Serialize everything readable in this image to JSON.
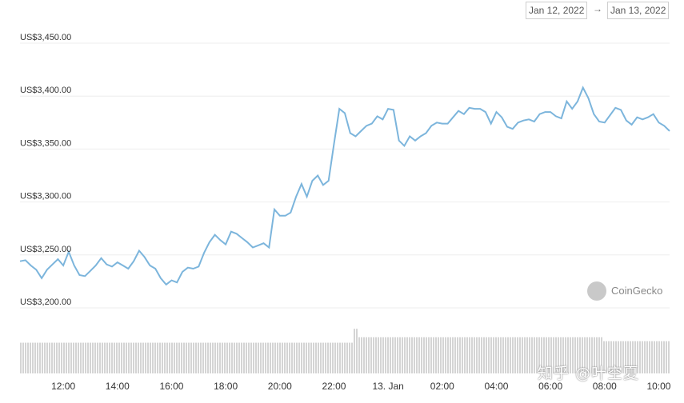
{
  "date_range": {
    "start": "Jan 12, 2022",
    "arrow": "→",
    "end": "Jan 13, 2022"
  },
  "brand": {
    "name": "CoinGecko"
  },
  "watermark": {
    "text": "知乎 @叶空夏"
  },
  "colors": {
    "line": "#7cb5dc",
    "volume": "#d4d4d4",
    "grid": "#eeeeee"
  },
  "chart_data": {
    "type": "line",
    "grid": true,
    "ylim": [
      3200,
      3450
    ],
    "y_ticks": [
      3200,
      3250,
      3300,
      3350,
      3400,
      3450
    ],
    "y_tick_labels": [
      "US$3,200.00",
      "US$3,250.00",
      "US$3,300.00",
      "US$3,350.00",
      "US$3,400.00",
      "US$3,450.00"
    ],
    "x_ticks": [
      12,
      14,
      16,
      18,
      20,
      22,
      24,
      26,
      28,
      30,
      32,
      34
    ],
    "x_tick_labels": [
      "12:00",
      "14:00",
      "16:00",
      "18:00",
      "20:00",
      "22:00",
      "13. Jan",
      "02:00",
      "04:00",
      "06:00",
      "08:00",
      "10:00"
    ],
    "xlim": [
      10.4,
      34.4
    ],
    "series": [
      {
        "values": [
          [
            10.4,
            3244
          ],
          [
            10.6,
            3245
          ],
          [
            10.8,
            3240
          ],
          [
            11.0,
            3236
          ],
          [
            11.2,
            3228
          ],
          [
            11.4,
            3236
          ],
          [
            11.6,
            3241
          ],
          [
            11.8,
            3246
          ],
          [
            12.0,
            3240
          ],
          [
            12.2,
            3253
          ],
          [
            12.4,
            3240
          ],
          [
            12.6,
            3231
          ],
          [
            12.8,
            3230
          ],
          [
            13.0,
            3235
          ],
          [
            13.2,
            3240
          ],
          [
            13.4,
            3247
          ],
          [
            13.6,
            3241
          ],
          [
            13.8,
            3239
          ],
          [
            14.0,
            3243
          ],
          [
            14.2,
            3240
          ],
          [
            14.4,
            3237
          ],
          [
            14.6,
            3244
          ],
          [
            14.8,
            3254
          ],
          [
            15.0,
            3248
          ],
          [
            15.2,
            3240
          ],
          [
            15.4,
            3237
          ],
          [
            15.6,
            3228
          ],
          [
            15.8,
            3222
          ],
          [
            16.0,
            3226
          ],
          [
            16.2,
            3224
          ],
          [
            16.4,
            3234
          ],
          [
            16.6,
            3238
          ],
          [
            16.8,
            3237
          ],
          [
            17.0,
            3239
          ],
          [
            17.2,
            3252
          ],
          [
            17.4,
            3262
          ],
          [
            17.6,
            3269
          ],
          [
            17.8,
            3264
          ],
          [
            18.0,
            3260
          ],
          [
            18.2,
            3272
          ],
          [
            18.4,
            3270
          ],
          [
            18.6,
            3266
          ],
          [
            18.8,
            3262
          ],
          [
            19.0,
            3257
          ],
          [
            19.2,
            3259
          ],
          [
            19.4,
            3261
          ],
          [
            19.6,
            3257
          ],
          [
            19.8,
            3293
          ],
          [
            20.0,
            3287
          ],
          [
            20.2,
            3287
          ],
          [
            20.4,
            3290
          ],
          [
            20.6,
            3305
          ],
          [
            20.8,
            3317
          ],
          [
            21.0,
            3305
          ],
          [
            21.2,
            3320
          ],
          [
            21.4,
            3325
          ],
          [
            21.6,
            3316
          ],
          [
            21.8,
            3320
          ],
          [
            22.0,
            3355
          ],
          [
            22.2,
            3388
          ],
          [
            22.4,
            3384
          ],
          [
            22.6,
            3365
          ],
          [
            22.8,
            3362
          ],
          [
            23.0,
            3367
          ],
          [
            23.2,
            3372
          ],
          [
            23.4,
            3374
          ],
          [
            23.6,
            3381
          ],
          [
            23.8,
            3378
          ],
          [
            24.0,
            3388
          ],
          [
            24.2,
            3387
          ],
          [
            24.4,
            3358
          ],
          [
            24.6,
            3353
          ],
          [
            24.8,
            3362
          ],
          [
            25.0,
            3358
          ],
          [
            25.2,
            3362
          ],
          [
            25.4,
            3365
          ],
          [
            25.6,
            3372
          ],
          [
            25.8,
            3375
          ],
          [
            26.0,
            3374
          ],
          [
            26.2,
            3374
          ],
          [
            26.4,
            3380
          ],
          [
            26.6,
            3386
          ],
          [
            26.8,
            3383
          ],
          [
            27.0,
            3389
          ],
          [
            27.2,
            3388
          ],
          [
            27.4,
            3388
          ],
          [
            27.6,
            3385
          ],
          [
            27.8,
            3374
          ],
          [
            28.0,
            3385
          ],
          [
            28.2,
            3380
          ],
          [
            28.4,
            3371
          ],
          [
            28.6,
            3369
          ],
          [
            28.8,
            3375
          ],
          [
            29.0,
            3377
          ],
          [
            29.2,
            3378
          ],
          [
            29.4,
            3376
          ],
          [
            29.6,
            3383
          ],
          [
            29.8,
            3385
          ],
          [
            30.0,
            3385
          ],
          [
            30.2,
            3381
          ],
          [
            30.4,
            3379
          ],
          [
            30.6,
            3395
          ],
          [
            30.8,
            3388
          ],
          [
            31.0,
            3395
          ],
          [
            31.2,
            3408
          ],
          [
            31.4,
            3398
          ],
          [
            31.6,
            3383
          ],
          [
            31.8,
            3376
          ],
          [
            32.0,
            3375
          ],
          [
            32.2,
            3382
          ],
          [
            32.4,
            3389
          ],
          [
            32.6,
            3387
          ],
          [
            32.8,
            3377
          ],
          [
            33.0,
            3373
          ],
          [
            33.2,
            3380
          ],
          [
            33.4,
            3378
          ],
          [
            33.6,
            3380
          ],
          [
            33.8,
            3383
          ],
          [
            34.0,
            3375
          ],
          [
            34.2,
            3372
          ],
          [
            34.4,
            3367
          ]
        ]
      }
    ],
    "volume": {
      "levels": [
        [
          10.4,
          0.62
        ],
        [
          22.6,
          0.62
        ],
        [
          22.7,
          0.9
        ],
        [
          22.85,
          0.9
        ],
        [
          22.9,
          0.73
        ],
        [
          31.8,
          0.73
        ],
        [
          31.9,
          0.65
        ],
        [
          34.4,
          0.65
        ]
      ]
    }
  }
}
